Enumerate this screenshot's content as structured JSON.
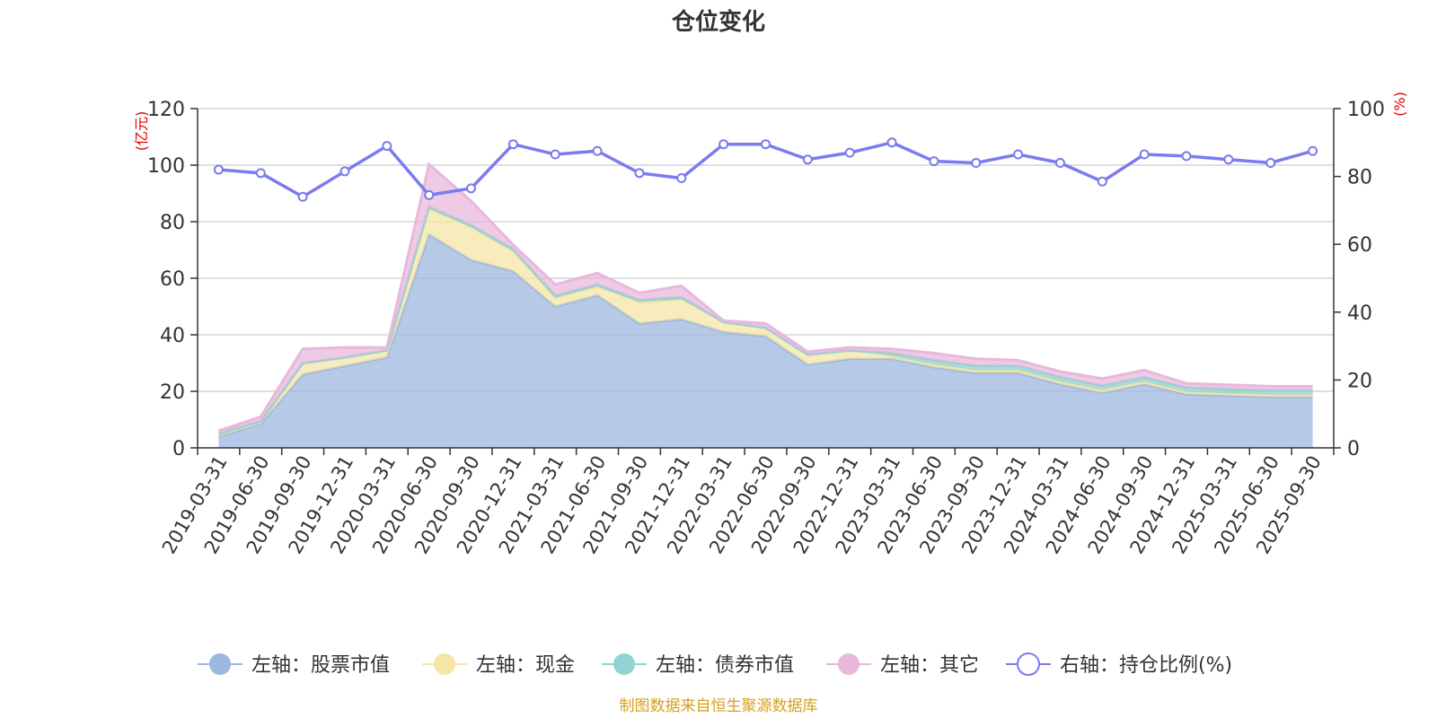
{
  "chart_data": {
    "type": "area",
    "title": "仓位变化",
    "source": "制图数据来自恒生聚源数据库",
    "left_axis": {
      "unit": "(亿元)",
      "min": 0,
      "max": 120,
      "ticks": [
        0,
        20,
        40,
        60,
        80,
        100,
        120
      ]
    },
    "right_axis": {
      "unit": "(%)",
      "min": 0,
      "max": 100,
      "ticks": [
        0,
        20,
        40,
        60,
        80,
        100
      ]
    },
    "categories": [
      "2019-03-31",
      "2019-06-30",
      "2019-09-30",
      "2019-12-31",
      "2020-03-31",
      "2020-06-30",
      "2020-09-30",
      "2020-12-31",
      "2021-03-31",
      "2021-06-30",
      "2021-09-30",
      "2021-12-31",
      "2022-03-31",
      "2022-06-30",
      "2022-09-30",
      "2022-12-31",
      "2023-03-31",
      "2023-06-30",
      "2023-09-30",
      "2023-12-31",
      "2024-03-31",
      "2024-06-30",
      "2024-09-30",
      "2024-12-31",
      "2025-03-31",
      "2025-06-30",
      "2025-09-30"
    ],
    "series": [
      {
        "name": "左轴：股票市值",
        "axis": "left",
        "kind": "stacked-area",
        "color": "#9db8e0",
        "values": [
          4,
          8.5,
          26,
          29,
          32,
          75.5,
          66.5,
          62.5,
          50,
          54,
          44,
          45.5,
          41,
          39.5,
          29.5,
          31.5,
          31.5,
          28.5,
          26.5,
          26.5,
          22.5,
          19.5,
          22.5,
          19,
          18.5,
          18,
          18
        ]
      },
      {
        "name": "左轴：现金",
        "axis": "left",
        "kind": "stacked-area",
        "color": "#f5e6a6",
        "values": [
          1,
          1,
          4,
          3,
          2.5,
          9,
          11.5,
          7,
          3,
          3,
          7.5,
          7,
          3.5,
          3,
          3.5,
          3,
          1,
          1,
          1,
          1,
          1,
          1,
          1,
          0.8,
          0.8,
          0.8,
          0.8
        ]
      },
      {
        "name": "左轴：债券市值",
        "axis": "left",
        "kind": "stacked-area",
        "color": "#8fd3d3",
        "values": [
          0,
          0,
          0,
          0,
          0,
          0.8,
          0.8,
          0.8,
          0.8,
          0.8,
          0.8,
          0.8,
          0,
          0,
          0,
          0,
          1,
          1.5,
          1.5,
          1.5,
          1.5,
          1.5,
          1.5,
          1.5,
          1.5,
          1.5,
          1.5
        ]
      },
      {
        "name": "左轴：其它",
        "axis": "left",
        "kind": "stacked-area",
        "color": "#e8b8dc",
        "values": [
          1,
          1.5,
          5,
          3.5,
          1,
          15,
          8.5,
          1.5,
          4,
          4,
          2.5,
          4,
          0.5,
          1.5,
          1,
          1,
          1.5,
          2.5,
          2.5,
          2,
          2,
          2.5,
          2.5,
          1.5,
          1.5,
          1.5,
          1.5
        ]
      },
      {
        "name": "右轴：持仓比例(%)",
        "axis": "right",
        "kind": "line",
        "color": "#7b7bef",
        "values": [
          82,
          81,
          74,
          81.5,
          89,
          74.5,
          76.5,
          89.5,
          86.5,
          87.5,
          81,
          79.5,
          89.5,
          89.5,
          85,
          87,
          90,
          84.5,
          84,
          86.5,
          84,
          78.5,
          86.5,
          86,
          85,
          84,
          87.5
        ]
      }
    ],
    "legend_position": "bottom-center"
  }
}
